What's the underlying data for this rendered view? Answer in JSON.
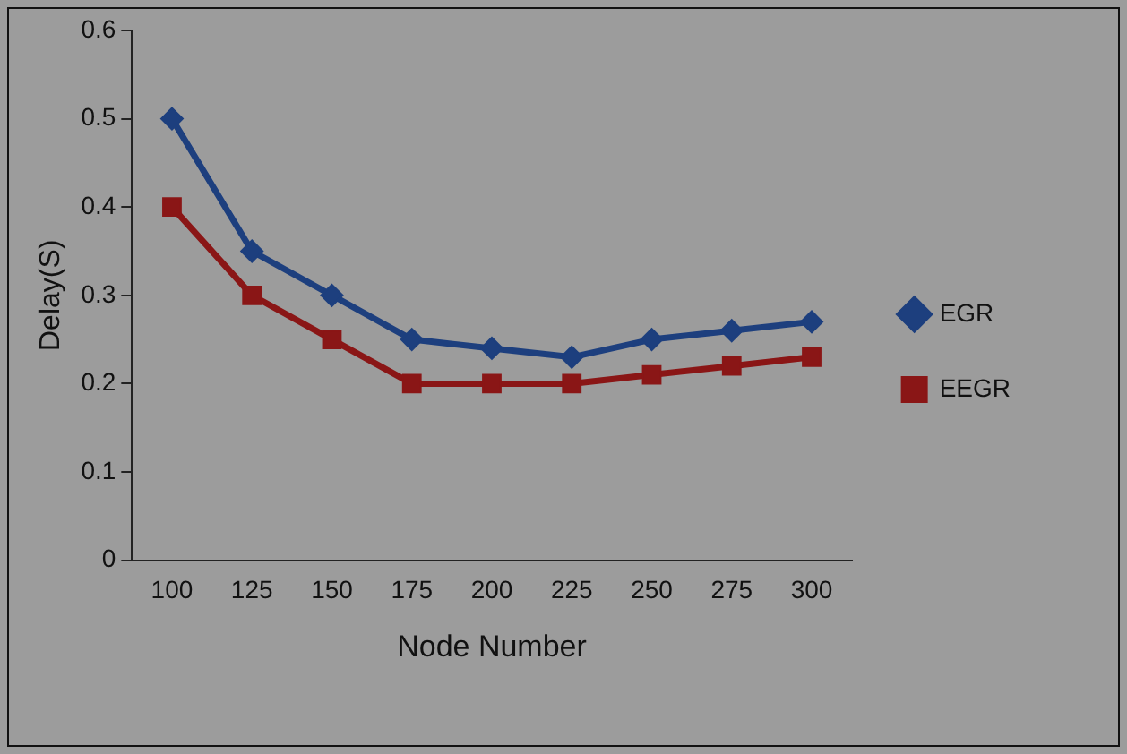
{
  "chart_data": {
    "type": "line",
    "xlabel": "Node Number",
    "ylabel": "Delay(S)",
    "categories": [
      "100",
      "125",
      "150",
      "175",
      "200",
      "225",
      "250",
      "275",
      "300"
    ],
    "series": [
      {
        "name": "EGR",
        "color": "#1d3f7e",
        "marker": "diamond",
        "values": [
          0.5,
          0.35,
          0.3,
          0.25,
          0.24,
          0.23,
          0.25,
          0.26,
          0.27
        ]
      },
      {
        "name": "EEGR",
        "color": "#8a1616",
        "marker": "square",
        "values": [
          0.4,
          0.3,
          0.25,
          0.2,
          0.2,
          0.2,
          0.21,
          0.22,
          0.23
        ]
      }
    ],
    "ylim": [
      0,
      0.6
    ],
    "yticks": [
      0,
      0.1,
      0.2,
      0.3,
      0.4,
      0.5,
      0.6
    ],
    "grid": false,
    "legend": "right",
    "line_style": "solid"
  }
}
